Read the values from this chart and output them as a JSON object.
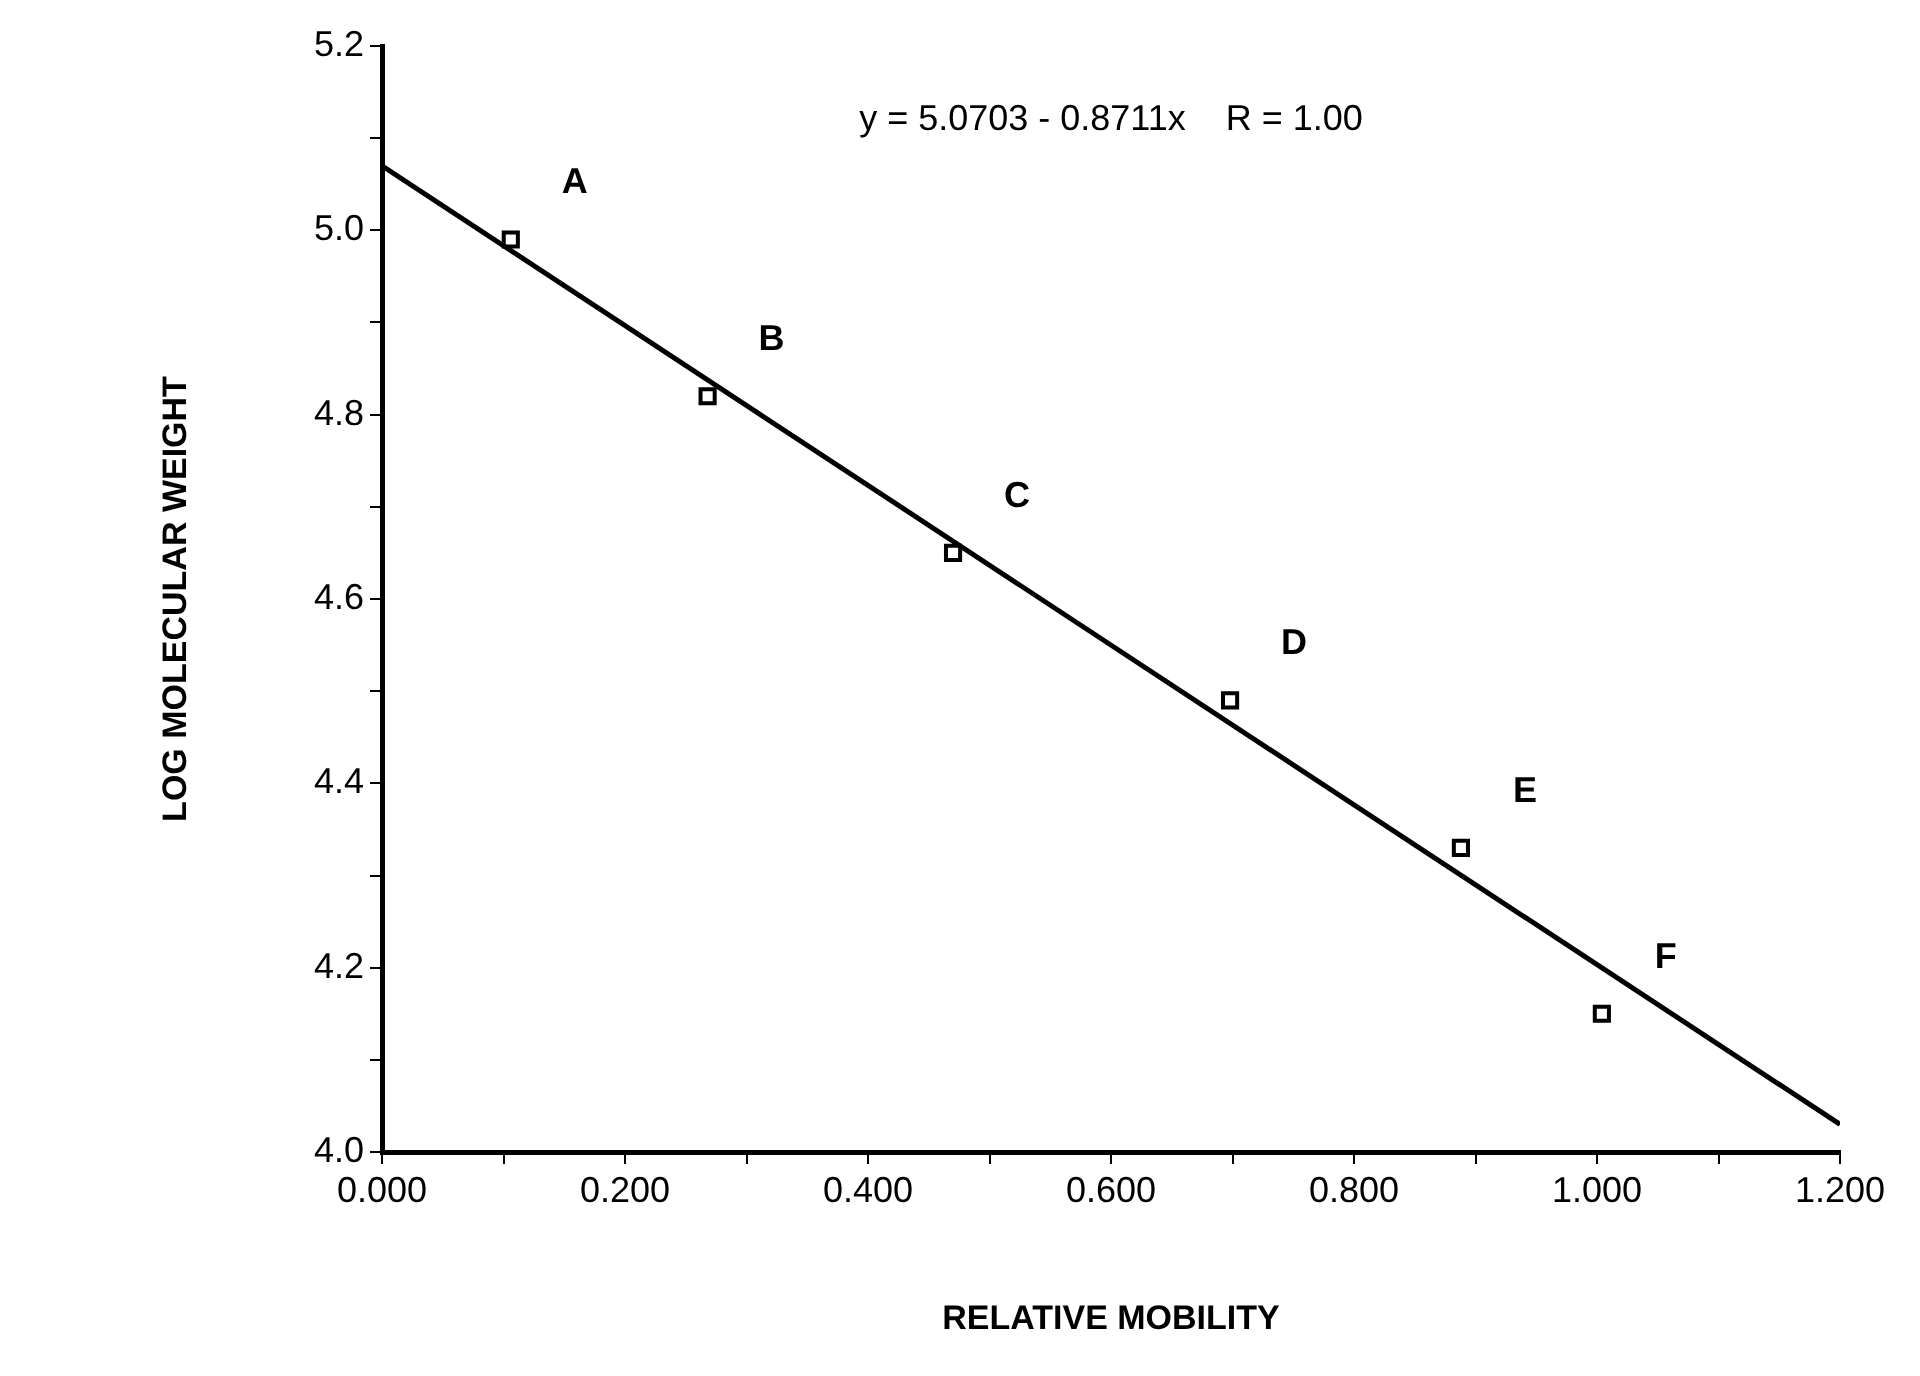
{
  "chart_data": {
    "type": "scatter",
    "xlabel": "RELATIVE MOBILITY",
    "ylabel": "LOG MOLECULAR WEIGHT",
    "x": [
      0.106,
      0.268,
      0.47,
      0.698,
      0.888,
      1.004
    ],
    "series": [
      {
        "color": "#000000",
        "values": [
          4.99,
          4.82,
          4.65,
          4.49,
          4.33,
          4.15
        ],
        "marker": "square"
      },
      {
        "type": "line",
        "color": "#000000",
        "x": [
          0,
          1.2
        ],
        "values": [
          5.07,
          4.03
        ],
        "marker": "none"
      }
    ],
    "xlim": [
      0,
      1.2
    ],
    "ylim": [
      4.0,
      5.2
    ],
    "xticks": [
      {
        "value": 0,
        "label": "0.000"
      },
      {
        "value": 0.1,
        "label": null
      },
      {
        "value": 0.2,
        "label": "0.200"
      },
      {
        "value": 0.3,
        "label": null
      },
      {
        "value": 0.4,
        "label": "0.400"
      },
      {
        "value": 0.5,
        "label": null
      },
      {
        "value": 0.6,
        "label": "0.600"
      },
      {
        "value": 0.7,
        "label": null
      },
      {
        "value": 0.8,
        "label": "0.800"
      },
      {
        "value": 0.9,
        "label": null
      },
      {
        "value": 1.0,
        "label": "1.000"
      },
      {
        "value": 1.1,
        "label": null
      },
      {
        "value": 1.2,
        "label": "1.200"
      }
    ],
    "yticks": [
      {
        "value": 4.0,
        "label": "4.0"
      },
      {
        "value": 4.1,
        "label": null
      },
      {
        "value": 4.2,
        "label": "4.2"
      },
      {
        "value": 4.3,
        "label": null
      },
      {
        "value": 4.4,
        "label": "4.4"
      },
      {
        "value": 4.5,
        "label": null
      },
      {
        "value": 4.6,
        "label": "4.6"
      },
      {
        "value": 4.7,
        "label": null
      },
      {
        "value": 4.8,
        "label": "4.8"
      },
      {
        "value": 4.9,
        "label": null
      },
      {
        "value": 5.0,
        "label": "5.0"
      },
      {
        "value": 5.1,
        "label": null
      },
      {
        "value": 5.2,
        "label": "5.2"
      }
    ],
    "grid": false,
    "legend": false,
    "annotations": [
      "y = 5.0703 - 0.8711x    R = 1.00",
      {
        "text": "A",
        "x": 0.106,
        "y": 4.99
      },
      {
        "text": "B",
        "x": 0.268,
        "y": 4.82
      },
      {
        "text": "C",
        "x": 0.47,
        "y": 4.65
      },
      {
        "text": "D",
        "x": 0.698,
        "y": 4.49
      },
      {
        "text": "E",
        "x": 0.888,
        "y": 4.33
      },
      {
        "text": "F",
        "x": 1.004,
        "y": 4.15
      }
    ]
  }
}
